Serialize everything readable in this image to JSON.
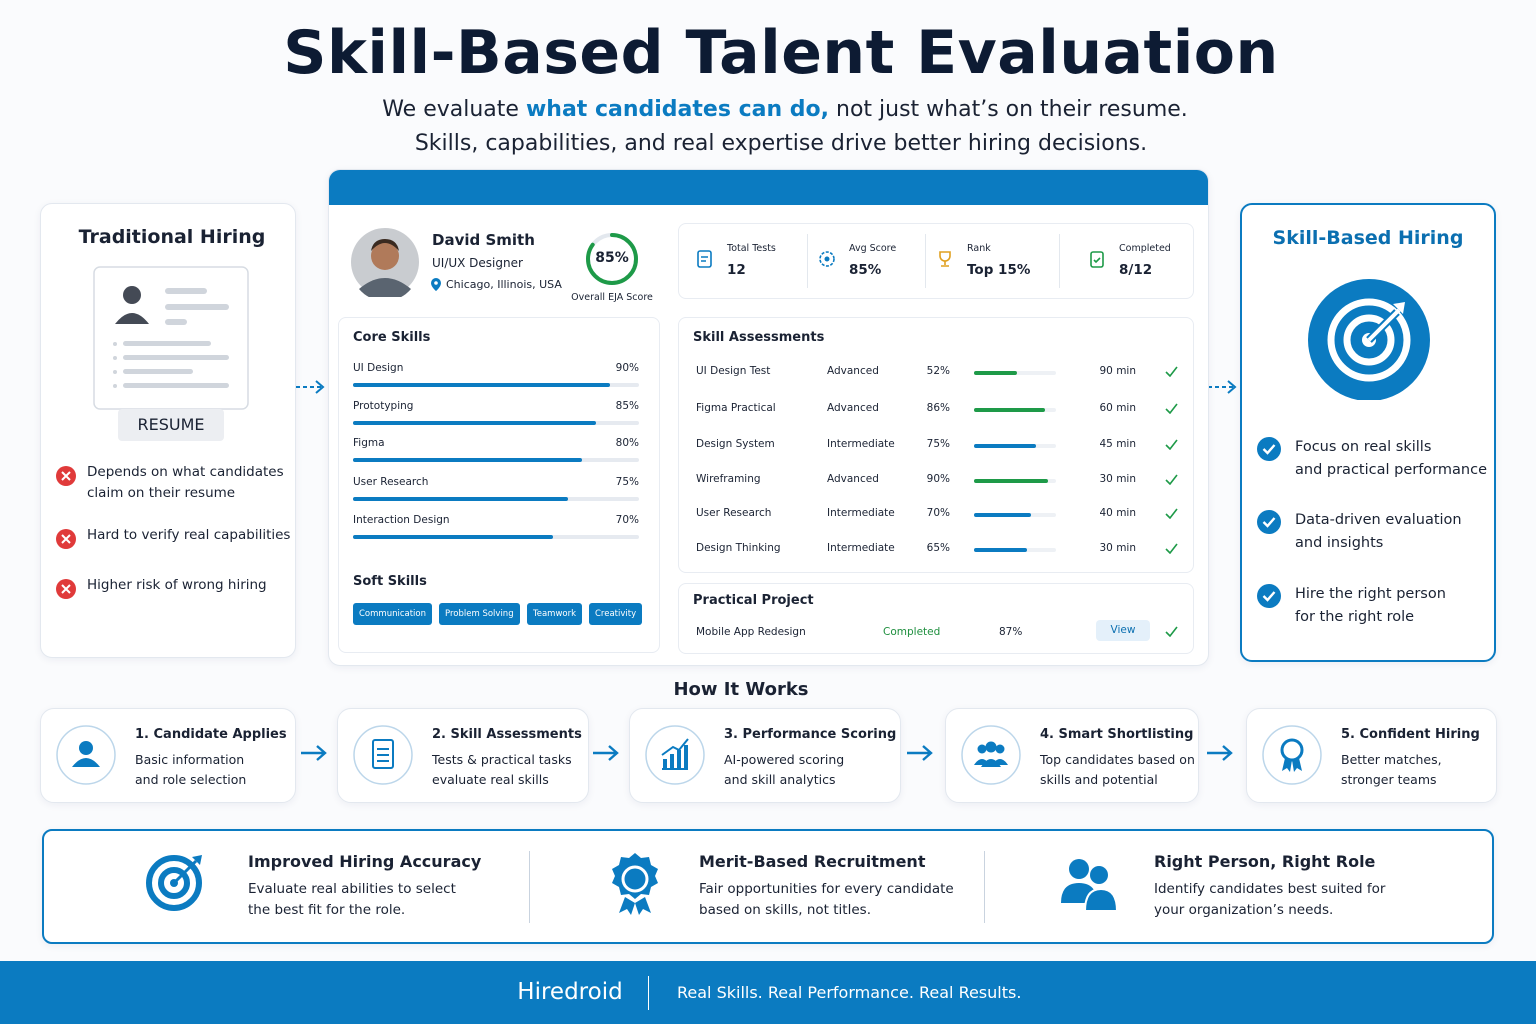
{
  "header": {
    "title": "Skill-Based Talent Evaluation",
    "subtitle_line1": [
      "We evaluate ",
      "what candidates can do,",
      " not just what’s on their resume."
    ],
    "subtitle_line2": "Skills, capabilities, and real expertise drive better hiring decisions."
  },
  "traditional": {
    "title": "Traditional Hiring",
    "resume_label": "RESUME",
    "points": [
      [
        "Depends on what candidates",
        "claim on their resume"
      ],
      [
        "Hard to verify real capabilities"
      ],
      [
        "Higher risk of wrong hiring"
      ]
    ]
  },
  "profile": {
    "name": "David Smith",
    "role": "UI/UX Designer",
    "location": "Chicago, Illinois, USA",
    "score": {
      "value": 85,
      "label": "85%"
    },
    "score_caption": "Overall EJA Score"
  },
  "stats": [
    {
      "label": "Total Tests",
      "value": "12"
    },
    {
      "label": "Avg Score",
      "value": "85%"
    },
    {
      "label": "Rank",
      "value": "Top 15%"
    },
    {
      "label": "Completed",
      "value": "8/12"
    }
  ],
  "core_skills": {
    "title": "Core Skills",
    "items": [
      {
        "name": "UI Design",
        "value": 90,
        "label": "90%"
      },
      {
        "name": "Prototyping",
        "value": 85,
        "label": "85%"
      },
      {
        "name": "Figma",
        "value": 80,
        "label": "80%"
      },
      {
        "name": "User Research",
        "value": 75,
        "label": "75%"
      },
      {
        "name": "Interaction Design",
        "value": 70,
        "label": "70%"
      }
    ]
  },
  "soft_skills": {
    "title": "Soft Skills",
    "tags": [
      "Communication",
      "Problem Solving",
      "Teamwork",
      "Creativity"
    ]
  },
  "assessments": {
    "title": "Skill Assessments",
    "rows": [
      {
        "name": "UI Design Test",
        "level": "Advanced",
        "score": {
          "value": 52,
          "label": "52%"
        },
        "time": "90 min"
      },
      {
        "name": "Figma Practical",
        "level": "Advanced",
        "score": {
          "value": 86,
          "label": "86%"
        },
        "time": "60 min"
      },
      {
        "name": "Design System",
        "level": "Intermediate",
        "score": {
          "value": 75,
          "label": "75%"
        },
        "time": "45 min"
      },
      {
        "name": "Wireframing",
        "level": "Advanced",
        "score": {
          "value": 90,
          "label": "90%"
        },
        "time": "30 min"
      },
      {
        "name": "User Research",
        "level": "Intermediate",
        "score": {
          "value": 70,
          "label": "70%"
        },
        "time": "40 min"
      },
      {
        "name": "Design Thinking",
        "level": "Intermediate",
        "score": {
          "value": 65,
          "label": "65%"
        },
        "time": "30 min"
      }
    ]
  },
  "project": {
    "title": "Practical Project",
    "name": "Mobile App Redesign",
    "status": "Completed",
    "score": "87%",
    "action": "View"
  },
  "skill_based": {
    "title": "Skill-Based Hiring",
    "points": [
      [
        "Focus on real skills",
        "and practical performance"
      ],
      [
        "Data-driven evaluation",
        "and insights"
      ],
      [
        "Hire the right person",
        "for the right role"
      ]
    ]
  },
  "how_it_works": {
    "title": "How It Works",
    "steps": [
      {
        "title": "1. Candidate Applies",
        "lines": [
          "Basic information",
          "and role selection"
        ]
      },
      {
        "title": "2. Skill Assessments",
        "lines": [
          "Tests & practical tasks",
          "evaluate real skills"
        ]
      },
      {
        "title": "3. Performance Scoring",
        "lines": [
          "AI-powered scoring",
          "and skill analytics"
        ]
      },
      {
        "title": "4. Smart Shortlisting",
        "lines": [
          "Top candidates based on",
          "skills and potential"
        ]
      },
      {
        "title": "5. Confident Hiring",
        "lines": [
          "Better matches,",
          "stronger teams"
        ]
      }
    ]
  },
  "benefits": [
    {
      "title": "Improved Hiring Accuracy",
      "lines": [
        "Evaluate real abilities to select",
        "the best fit for the role."
      ]
    },
    {
      "title": "Merit-Based Recruitment",
      "lines": [
        "Fair opportunities for every candidate",
        "based on skills, not titles."
      ]
    },
    {
      "title": "Right Person, Right Role",
      "lines": [
        "Identify candidates best suited for",
        "your organization’s needs."
      ]
    }
  ],
  "footer": {
    "brand": "Hiredroid",
    "tagline": "Real Skills. Real Performance. Real Results."
  }
}
